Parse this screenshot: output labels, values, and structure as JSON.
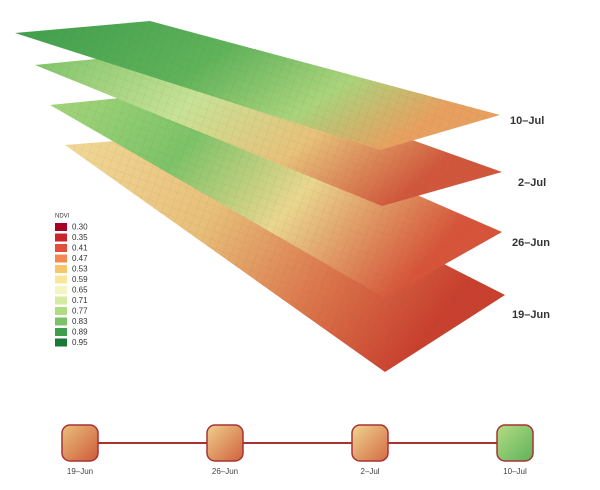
{
  "layers": [
    {
      "label": "10–Jul"
    },
    {
      "label": "2–Jul"
    },
    {
      "label": "26–Jun"
    },
    {
      "label": "19–Jun"
    }
  ],
  "legend": {
    "title": "NDVI",
    "items": [
      {
        "label": "0.30",
        "color": "#a50026"
      },
      {
        "label": "0.35",
        "color": "#c8262b"
      },
      {
        "label": "0.41",
        "color": "#e0503a"
      },
      {
        "label": "0.47",
        "color": "#f4884e"
      },
      {
        "label": "0.53",
        "color": "#f8c56a"
      },
      {
        "label": "0.59",
        "color": "#fbe79a"
      },
      {
        "label": "0.65",
        "color": "#f5f5c0"
      },
      {
        "label": "0.71",
        "color": "#d6eba0"
      },
      {
        "label": "0.77",
        "color": "#b1dc82"
      },
      {
        "label": "0.83",
        "color": "#7cc368"
      },
      {
        "label": "0.89",
        "color": "#3e9e4c"
      },
      {
        "label": "0.95",
        "color": "#1a7837"
      }
    ]
  },
  "timeline": [
    {
      "label": "19–Jun"
    },
    {
      "label": "26–Jun"
    },
    {
      "label": "2–Jul"
    },
    {
      "label": "10–Jul"
    }
  ]
}
